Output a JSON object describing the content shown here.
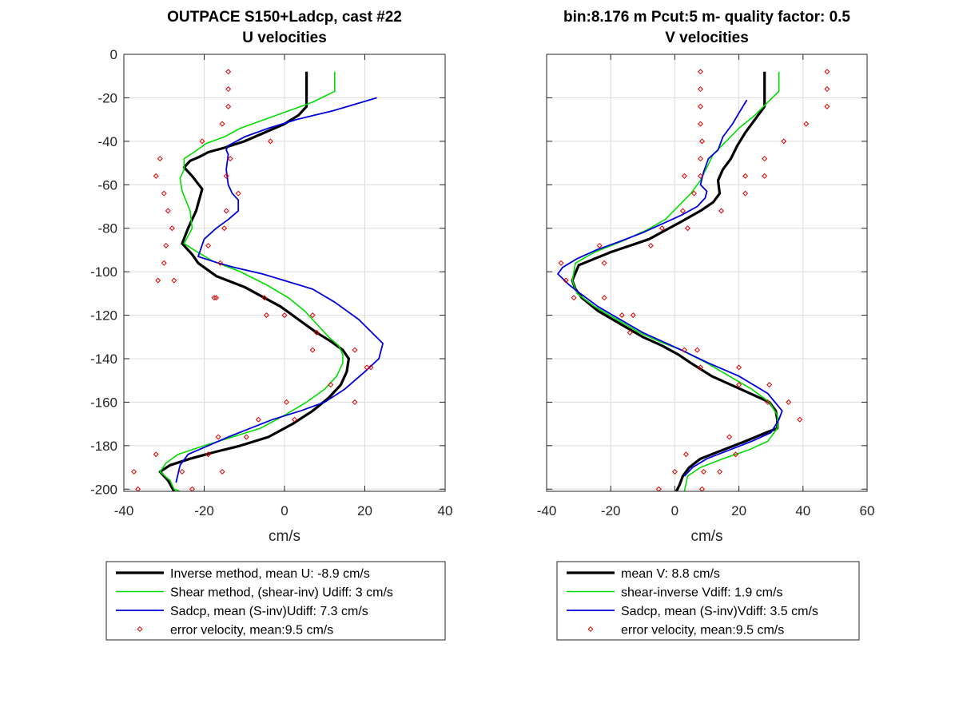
{
  "colors": {
    "inverse": "#000000",
    "shear": "#00dd00",
    "sadcp": "#0000dd",
    "error": "#dd0000",
    "grid": "#dcdcdc"
  },
  "chart_data": [
    {
      "type": "line",
      "title": "OUTPACE S150+Ladcp, cast #22",
      "subtitle": "U velocities",
      "xlabel": "cm/s",
      "ylabel": "",
      "xlim": [
        -40,
        40
      ],
      "ylim": [
        -201,
        0
      ],
      "xticks": [
        -40,
        -20,
        0,
        20,
        40
      ],
      "yticks": [
        0,
        -20,
        -40,
        -60,
        -80,
        -100,
        -120,
        -140,
        -160,
        -180,
        -200
      ],
      "grid": true,
      "legend_position": "below",
      "series": [
        {
          "name": "Inverse method, mean U:  -8.9 cm/s",
          "role": "inverse",
          "x": [
            5.5,
            5.5,
            5.5,
            3.5,
            0,
            -5,
            -10,
            -15,
            -19,
            -21,
            -23.5,
            -25,
            -23,
            -20.5,
            -22,
            -24,
            -25.5,
            -23,
            -21.5,
            -17,
            -10,
            -5,
            -1,
            2,
            5,
            8,
            11.5,
            14.5,
            16,
            15.5,
            14,
            11,
            7,
            2,
            -4,
            -11,
            -17.5,
            -23.5,
            -28.5,
            -31,
            -29,
            -27.5
          ],
          "y": [
            -8,
            -16,
            -24,
            -28,
            -32,
            -36,
            -40,
            -43,
            -45,
            -47,
            -49,
            -52,
            -56,
            -62,
            -72,
            -80,
            -87,
            -92,
            -96,
            -102,
            -107,
            -112,
            -116,
            -120,
            -124,
            -128,
            -132,
            -136,
            -140,
            -146,
            -152,
            -158,
            -164,
            -170,
            -176,
            -180,
            -183,
            -186,
            -189,
            -192,
            -196,
            -201
          ]
        },
        {
          "name": "Shear method, (shear-inv)  Udiff:  3 cm/s",
          "role": "shear",
          "x": [
            12.5,
            12.5,
            12.5,
            7,
            1,
            -5,
            -11,
            -15,
            -19.5,
            -22.5,
            -25,
            -25,
            -26,
            -25.5,
            -23.5,
            -23,
            -25,
            -22.5,
            -18,
            -11,
            -4.5,
            1,
            5,
            8,
            11,
            13.5,
            14.5,
            14.5,
            13,
            10,
            5.5,
            0,
            -6,
            -13,
            -20,
            -26.5,
            -29.5,
            -31,
            -28.5,
            -27.5,
            -26
          ],
          "y": [
            -8,
            -13,
            -17,
            -22,
            -26,
            -30,
            -34,
            -38,
            -41,
            -45,
            -48,
            -53,
            -57,
            -63,
            -72,
            -80,
            -87,
            -90,
            -95,
            -100,
            -106,
            -112,
            -118,
            -124,
            -130,
            -134,
            -138,
            -142,
            -148,
            -154,
            -160,
            -166,
            -172,
            -176,
            -180,
            -184,
            -188,
            -192,
            -196,
            -200,
            -201
          ]
        },
        {
          "name": "Sadcp, mean (S-inv)Udiff: 7.3 cm/s",
          "role": "sadcp",
          "x": [
            23,
            12,
            3,
            -4,
            -10,
            -14,
            -14.5,
            -14,
            -14.5,
            -14,
            -13,
            -11.5,
            -11.5,
            -14,
            -17,
            -20,
            -21.5,
            -16.5,
            -12.5,
            -5.5,
            7,
            12.5,
            18.5,
            24.5,
            23.5,
            20,
            15,
            10,
            4,
            -3,
            -8.5,
            -14,
            -19,
            -24,
            -26,
            -27
          ],
          "y": [
            -20,
            -26,
            -30,
            -34,
            -38,
            -42,
            -44,
            -46,
            -53,
            -60,
            -64,
            -67,
            -72,
            -76,
            -80,
            -85,
            -93,
            -96,
            -98,
            -101,
            -108,
            -114,
            -122,
            -133,
            -140,
            -146,
            -154,
            -160,
            -164,
            -168,
            -172,
            -176,
            -180,
            -184,
            -189,
            -197
          ]
        }
      ],
      "error_velocity": {
        "name": "error velocity, mean:9.5 cm/s",
        "x": [
          -14,
          -14,
          -14,
          -15.5,
          -3.5,
          -20.5,
          -31,
          -32,
          -13.5,
          -30,
          -14.5,
          -29,
          -11.5,
          -28,
          -14.5,
          -29.5,
          -15,
          -30,
          -19,
          -31.5,
          -16,
          -27.5,
          -17,
          -5,
          -17.5,
          0,
          -4.5,
          8,
          7,
          17.5,
          7,
          21.5,
          20.5,
          11.5,
          0.5,
          17.5,
          2.5,
          -6.5,
          -9.5,
          -16.5,
          -19,
          -32,
          -15.5,
          -25.5,
          -37.5,
          -36.5,
          -23
        ],
        "y": [
          -8,
          -16,
          -24,
          -32,
          -40,
          -40,
          -48,
          -56,
          -48,
          -64,
          -56,
          -72,
          -64,
          -80,
          -72,
          -88,
          -80,
          -96,
          -88,
          -104,
          -96,
          -104,
          -112,
          -112,
          -112,
          -120,
          -120,
          -128,
          -120,
          -136,
          -136,
          -144,
          -144,
          -152,
          -160,
          -160,
          -168,
          -168,
          -176,
          -176,
          -184,
          -184,
          -192,
          -192,
          -192,
          -200,
          -200
        ]
      }
    },
    {
      "type": "line",
      "title": "bin:8.176 m  Pcut:5 m- quality factor:  0.5",
      "subtitle": "V velocities",
      "xlabel": "cm/s",
      "ylabel": "",
      "xlim": [
        -40,
        60
      ],
      "ylim": [
        -201,
        0
      ],
      "xticks": [
        -40,
        -20,
        0,
        20,
        40,
        60
      ],
      "yticks": [
        0,
        -20,
        -40,
        -60,
        -80,
        -100,
        -120,
        -140,
        -160,
        -180,
        -200
      ],
      "grid": true,
      "legend_position": "below",
      "series": [
        {
          "name": "mean V:  8.8 cm/s",
          "role": "inverse",
          "x": [
            28,
            28,
            28,
            25,
            22,
            19.5,
            17.5,
            15,
            13.5,
            14,
            12,
            8,
            2,
            -3,
            -8,
            -14,
            -20,
            -25,
            -30,
            -32,
            -31,
            -29,
            -24,
            -17,
            -10,
            -4,
            1,
            5,
            11.5,
            20.5,
            29.5,
            31.5,
            32,
            32,
            28.5,
            22,
            15,
            8,
            4.5,
            2.5,
            1.5,
            0.5
          ],
          "y": [
            -8,
            -16,
            -24,
            -30,
            -36,
            -42,
            -48,
            -53,
            -58,
            -64,
            -68,
            -72,
            -77,
            -81,
            -85,
            -88,
            -91,
            -94,
            -97,
            -104,
            -108,
            -112,
            -118,
            -124,
            -130,
            -134,
            -138,
            -142,
            -148,
            -154,
            -160,
            -164,
            -168,
            -172,
            -174,
            -178,
            -182,
            -186,
            -190,
            -194,
            -198,
            -201
          ]
        },
        {
          "name": "shear-inverse Vdiff:  1.9 cm/s",
          "role": "shear",
          "x": [
            32.5,
            32.5,
            32.5,
            29,
            25,
            20,
            16,
            12,
            10,
            8,
            5,
            1,
            -3,
            -9,
            -16.5,
            -25,
            -31,
            -32,
            -30.5,
            -25,
            -18,
            -11,
            -5,
            2,
            10,
            17,
            24,
            29.5,
            32,
            32,
            29,
            23,
            15,
            8,
            4,
            3
          ],
          "y": [
            -8,
            -13,
            -17,
            -22,
            -28,
            -34,
            -40,
            -46,
            -52,
            -58,
            -64,
            -70,
            -76,
            -81,
            -86,
            -91,
            -96,
            -104,
            -110,
            -116,
            -122,
            -128,
            -132,
            -136,
            -142,
            -148,
            -154,
            -160,
            -166,
            -172,
            -178,
            -182,
            -186,
            -190,
            -194,
            -201
          ]
        },
        {
          "name": "Sadcp, mean (S-inv)Vdiff: 3.5 cm/s",
          "role": "sadcp",
          "x": [
            22.5,
            20,
            18,
            15,
            13.5,
            10.5,
            9,
            8,
            10,
            9.5,
            7,
            2,
            -4,
            -10,
            -17,
            -24.5,
            -30.5,
            -35,
            -36.5,
            -33,
            -29.5,
            -24,
            -17,
            -10,
            -4,
            2,
            10.5,
            20,
            29,
            33.5,
            32.5,
            30,
            24,
            17,
            10,
            5.5,
            3
          ],
          "y": [
            -21,
            -27,
            -32,
            -38,
            -44,
            -48,
            -54,
            -60,
            -63,
            -66,
            -70,
            -74,
            -78,
            -82,
            -86,
            -90,
            -94,
            -98,
            -101,
            -106,
            -110,
            -116,
            -122,
            -128,
            -132,
            -136,
            -142,
            -148,
            -156,
            -164,
            -168,
            -174,
            -178,
            -182,
            -186,
            -190,
            -194
          ]
        }
      ],
      "error_velocity": {
        "name": "error velocity, mean:9.5 cm/s",
        "x": [
          8,
          47.5,
          8,
          47.5,
          8,
          47.5,
          8,
          41,
          8.5,
          34,
          8,
          28,
          8,
          28,
          3,
          22,
          22,
          6,
          14.5,
          2.5,
          4,
          -4,
          -7.5,
          -23.5,
          -35.5,
          -22,
          -34,
          -31.5,
          -22,
          -13,
          -16.5,
          -14,
          7,
          3,
          8,
          20,
          20,
          29.5,
          35.5,
          29,
          39,
          17,
          19,
          3.5,
          14,
          9,
          0,
          8.5,
          -5
        ],
        "y": [
          -8,
          -8,
          -16,
          -16,
          -24,
          -24,
          -32,
          -32,
          -40,
          -40,
          -48,
          -48,
          -56,
          -56,
          -56,
          -56,
          -64,
          -64,
          -72,
          -72,
          -80,
          -80,
          -88,
          -88,
          -96,
          -96,
          -104,
          -112,
          -112,
          -120,
          -120,
          -128,
          -136,
          -136,
          -144,
          -144,
          -152,
          -152,
          -160,
          -160,
          -168,
          -176,
          -184,
          -184,
          -192,
          -192,
          -192,
          -200,
          -200
        ]
      }
    }
  ]
}
